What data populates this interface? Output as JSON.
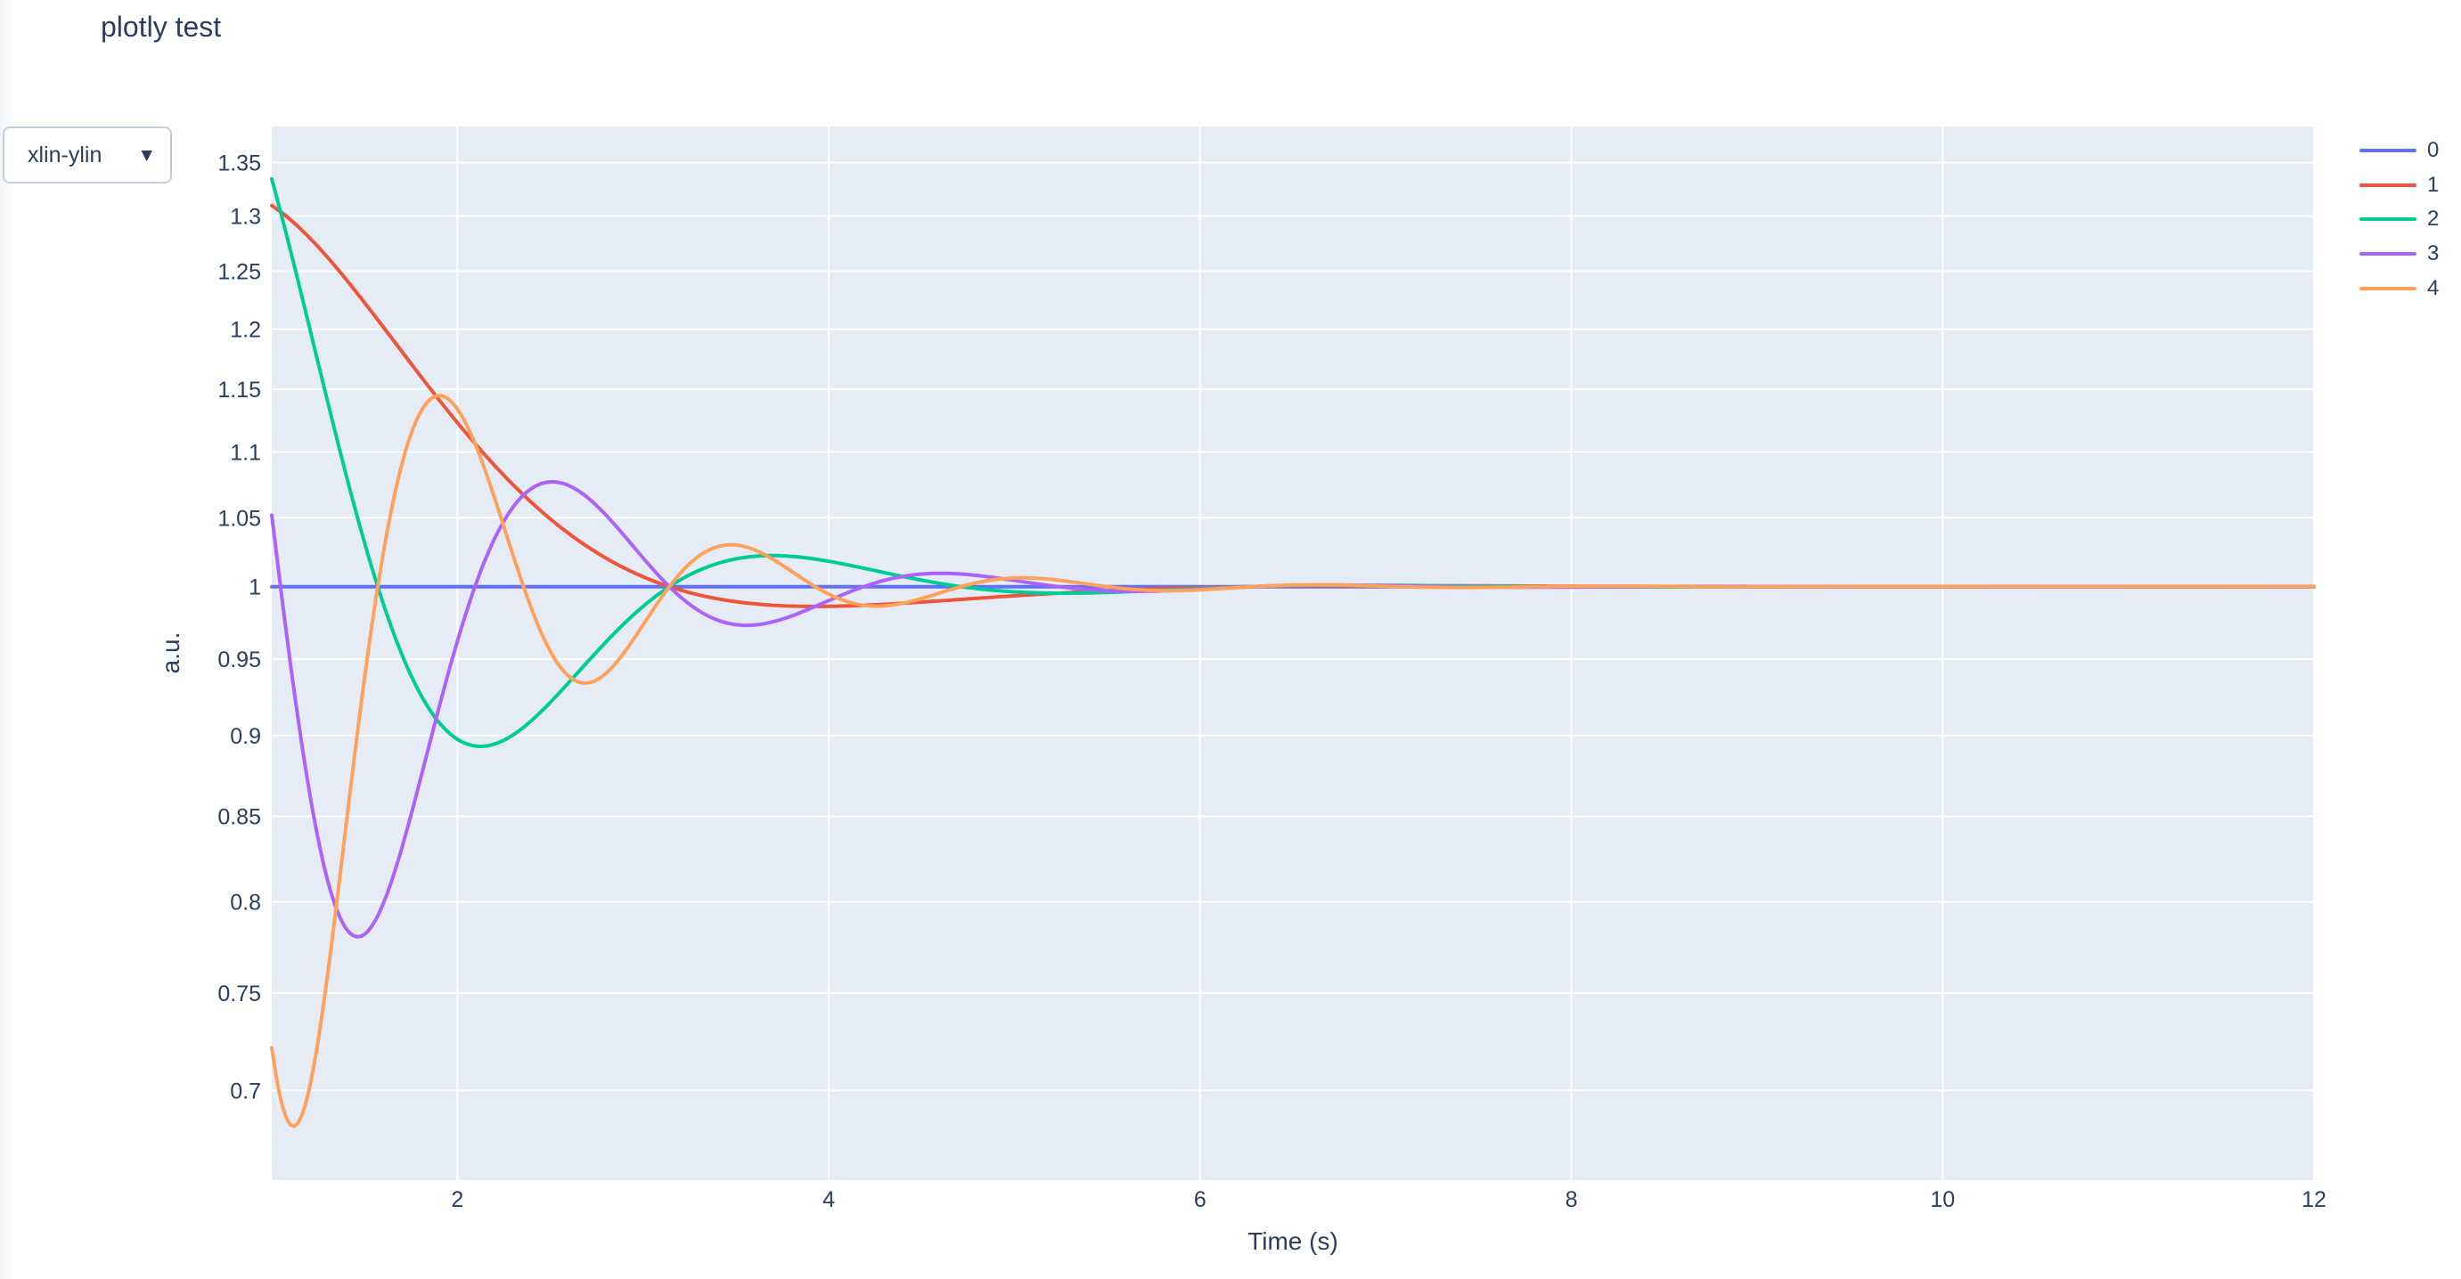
{
  "page": {
    "title": "plotly test"
  },
  "controls": {
    "dropdown_value": "xlin-ylin",
    "dropdown_caret": "▼"
  },
  "chart_data": {
    "type": "line",
    "title": "plotly test",
    "xlabel": "Time (s)",
    "ylabel": "a.u.",
    "grid": true,
    "legend_position": "right",
    "plot_bgcolor": "#E5ECF6",
    "grid_color": "#FFFFFF",
    "font_color": "#2a3f5f",
    "line_width": 4,
    "x_axis": {
      "scale": "linear",
      "range": [
        1,
        12
      ],
      "ticks": [
        2,
        4,
        6,
        8,
        10,
        12
      ],
      "tick_labels": [
        "2",
        "4",
        "6",
        "8",
        "10",
        "12"
      ]
    },
    "y_axis": {
      "scale": "log",
      "range": [
        0.657,
        1.385
      ],
      "ticks": [
        1.35,
        1.3,
        1.25,
        1.2,
        1.15,
        1.1,
        1.05,
        1,
        0.95,
        0.9,
        0.85,
        0.8,
        0.75,
        0.7
      ],
      "tick_labels": [
        "1.35",
        "1.3",
        "1.25",
        "1.2",
        "1.15",
        "1.1",
        "1.05",
        "1",
        "0.95",
        "0.9",
        "0.85",
        "0.8",
        "0.75",
        "0.7"
      ]
    },
    "sample_t": [
      1,
      1.5,
      2,
      2.5,
      3,
      3.5,
      4,
      4.5,
      5,
      5.5,
      6,
      6.5,
      7,
      7.5,
      8
    ],
    "series": [
      {
        "name": "0",
        "color": "#636EFA",
        "formula": "y(t) = 1 + exp(-t)*sin(0*t) = 1",
        "generator": {
          "baseline": 1,
          "decay": 1,
          "freq": 0
        },
        "sample_y": [
          1,
          1,
          1,
          1,
          1,
          1,
          1,
          1,
          1,
          1,
          1,
          1,
          1,
          1,
          1
        ]
      },
      {
        "name": "1",
        "color": "#EF553B",
        "formula": "y(t) = 1 + exp(-t)*sin(1*t)",
        "generator": {
          "baseline": 1,
          "decay": 1,
          "freq": 1
        },
        "sample_y": [
          1.3096,
          1.2226,
          1.1231,
          1.0491,
          1.007,
          0.9894,
          0.9861,
          0.9891,
          0.9935,
          0.9971,
          0.9993,
          1.0003,
          1.0006,
          1.0005,
          1.0003
        ]
      },
      {
        "name": "2",
        "color": "#00CC96",
        "formula": "y(t) = 1 + exp(-t)*sin(2*t)",
        "generator": {
          "baseline": 1,
          "decay": 1,
          "freq": 2
        },
        "sample_y": [
          1.3345,
          1.0315,
          0.8976,
          0.9213,
          0.9861,
          1.0198,
          1.0181,
          1.0046,
          0.9963,
          0.9959,
          0.9987,
          1.0006,
          1.0009,
          1.0004,
          0.9999
        ]
      },
      {
        "name": "3",
        "color": "#AB63FA",
        "formula": "y(t) = 1 + exp(-t)*sin(3*t)",
        "generator": {
          "baseline": 1,
          "decay": 1,
          "freq": 3
        },
        "sample_y": [
          1.0519,
          0.7819,
          0.9622,
          1.077,
          1.0205,
          0.9734,
          0.9902,
          1.0089,
          1.0044,
          0.9971,
          0.9981,
          1.0009,
          1.0008,
          0.9997,
          0.9997
        ]
      },
      {
        "name": "4",
        "color": "#FFA15A",
        "formula": "y(t) = 1 + exp(-t)*sin(4*t)",
        "generator": {
          "baseline": 1,
          "decay": 1,
          "freq": 4
        },
        "sample_y": [
          0.7216,
          0.9377,
          1.1339,
          0.9553,
          0.9733,
          1.0299,
          0.9947,
          0.9917,
          1.0062,
          1.0,
          0.9978,
          1.0011,
          1.0002,
          0.9995,
          1.0002
        ]
      }
    ]
  }
}
